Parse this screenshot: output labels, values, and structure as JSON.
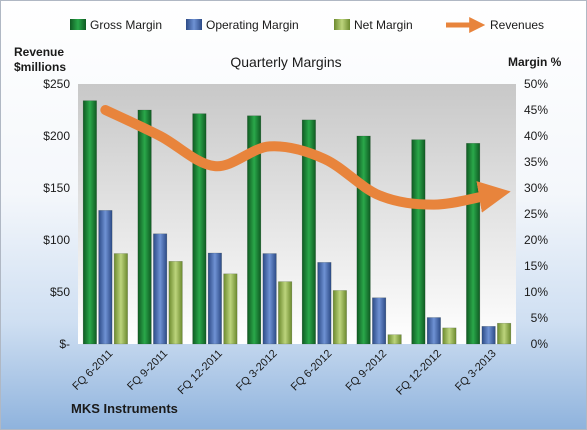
{
  "chart_data": {
    "type": "bar",
    "title": "Quarterly Margins",
    "caption": "MKS Instruments",
    "left_axis_label": [
      "Revenue",
      "$millions"
    ],
    "right_axis_label": "Margin %",
    "categories": [
      "FQ 6-2011",
      "FQ 9-2011",
      "FQ 12-2011",
      "FQ 3-2012",
      "FQ 6-2012",
      "FQ 9-2012",
      "FQ 12-2012",
      "FQ 3-2013"
    ],
    "left_ticks": [
      "$-",
      "$50",
      "$100",
      "$150",
      "$200",
      "$250"
    ],
    "right_ticks": [
      "0%",
      "5%",
      "10%",
      "15%",
      "20%",
      "25%",
      "30%",
      "35%",
      "40%",
      "45%",
      "50%"
    ],
    "ylim_left": [
      0,
      250
    ],
    "ylim_right": [
      0,
      50
    ],
    "grid": false,
    "legend_position": "top",
    "series": [
      {
        "name": "Gross Margin",
        "kind": "bar",
        "axis": "right",
        "unit": "%",
        "color": "#1e8a3a",
        "values": [
          46.8,
          45.0,
          44.3,
          43.9,
          43.1,
          40.0,
          39.3,
          38.6
        ]
      },
      {
        "name": "Operating Margin",
        "kind": "bar",
        "axis": "right",
        "unit": "%",
        "color": "#4a6fb5",
        "values": [
          25.7,
          21.2,
          17.5,
          17.4,
          15.7,
          8.9,
          5.1,
          3.4
        ]
      },
      {
        "name": "Net Margin",
        "kind": "bar",
        "axis": "right",
        "unit": "%",
        "color": "#9bb55b",
        "values": [
          17.4,
          15.9,
          13.5,
          12.0,
          10.3,
          1.8,
          3.1,
          4.0
        ]
      },
      {
        "name": "Revenues",
        "kind": "line",
        "axis": "left",
        "unit": "$millions",
        "color": "#e8843c",
        "values": [
          225,
          200,
          171,
          190,
          178,
          143,
          134,
          143
        ]
      }
    ]
  }
}
